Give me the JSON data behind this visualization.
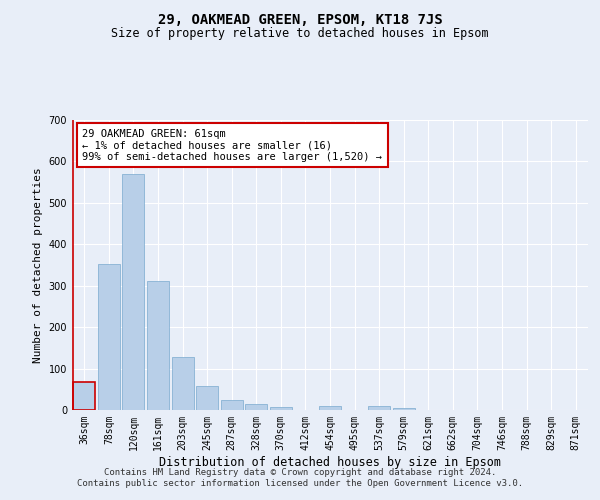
{
  "title": "29, OAKMEAD GREEN, EPSOM, KT18 7JS",
  "subtitle": "Size of property relative to detached houses in Epsom",
  "xlabel": "Distribution of detached houses by size in Epsom",
  "ylabel": "Number of detached properties",
  "categories": [
    "36sqm",
    "78sqm",
    "120sqm",
    "161sqm",
    "203sqm",
    "245sqm",
    "287sqm",
    "328sqm",
    "370sqm",
    "412sqm",
    "454sqm",
    "495sqm",
    "537sqm",
    "579sqm",
    "621sqm",
    "662sqm",
    "704sqm",
    "746sqm",
    "788sqm",
    "829sqm",
    "871sqm"
  ],
  "values": [
    67,
    352,
    570,
    312,
    128,
    58,
    25,
    14,
    8,
    0,
    10,
    0,
    10,
    5,
    0,
    0,
    0,
    0,
    0,
    0,
    0
  ],
  "bar_color": "#b8cfe8",
  "bar_edge_color": "#7aaace",
  "highlight_bar_edge_color": "#cc0000",
  "vline_color": "#cc0000",
  "annotation_text": "29 OAKMEAD GREEN: 61sqm\n← 1% of detached houses are smaller (16)\n99% of semi-detached houses are larger (1,520) →",
  "annotation_box_color": "white",
  "annotation_box_edge_color": "#cc0000",
  "ylim": [
    0,
    700
  ],
  "yticks": [
    0,
    100,
    200,
    300,
    400,
    500,
    600,
    700
  ],
  "footer_line1": "Contains HM Land Registry data © Crown copyright and database right 2024.",
  "footer_line2": "Contains public sector information licensed under the Open Government Licence v3.0.",
  "background_color": "#e8eef8",
  "grid_color": "#ffffff",
  "title_fontsize": 10,
  "subtitle_fontsize": 8.5,
  "ylabel_fontsize": 8,
  "xlabel_fontsize": 8.5,
  "tick_fontsize": 7,
  "annotation_fontsize": 7.5,
  "footer_fontsize": 6.5
}
